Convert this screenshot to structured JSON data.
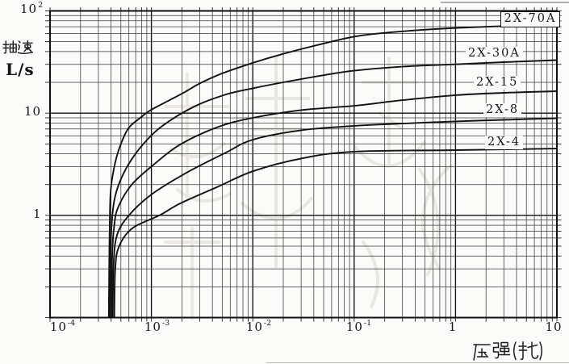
{
  "figure": {
    "y_axis": {
      "title_cn": "抽速",
      "unit": "L/s",
      "ticks": [
        {
          "base": "10",
          "exp": "2"
        },
        {
          "base": "10",
          "exp": ""
        },
        {
          "base": "1",
          "exp": ""
        }
      ]
    },
    "x_axis": {
      "title_cn": "压强(托)",
      "ticks": [
        {
          "base": "10",
          "exp": "-4"
        },
        {
          "base": "10",
          "exp": "-3"
        },
        {
          "base": "10",
          "exp": "-2"
        },
        {
          "base": "10",
          "exp": "-1"
        },
        {
          "base": "1",
          "exp": ""
        },
        {
          "base": "10",
          "exp": ""
        }
      ]
    },
    "colors": {
      "line": "#111111",
      "grid_minor": "#3a3a3a",
      "grid_major": "#121212",
      "background": "#fbfbfa"
    }
  },
  "chart_data": {
    "type": "line",
    "title": "",
    "xlabel": "压强(托)",
    "ylabel": "抽速 L/s",
    "x_scale": "log",
    "y_scale": "log",
    "xlim": [
      0.0001,
      10
    ],
    "ylim": [
      0.1,
      100
    ],
    "grid": "log-log full minor grid, ticks protruding on all four sides",
    "legend_position": "labels at right end of each curve",
    "x_tick_values": [
      0.0001,
      0.001,
      0.01,
      0.1,
      1,
      10
    ],
    "y_tick_values": [
      100,
      10,
      1
    ],
    "series": [
      {
        "name": "2X-70A",
        "points": [
          [
            0.00038,
            0.1
          ],
          [
            0.000385,
            0.45
          ],
          [
            0.00039,
            1.1
          ],
          [
            0.0004,
            1.9
          ],
          [
            0.00044,
            3.3
          ],
          [
            0.0005,
            5.0
          ],
          [
            0.0006,
            7.2
          ],
          [
            0.0008,
            9.2
          ],
          [
            0.001,
            10.8
          ],
          [
            0.002,
            15.5
          ],
          [
            0.003,
            19.5
          ],
          [
            0.005,
            24.5
          ],
          [
            0.01,
            31
          ],
          [
            0.02,
            38
          ],
          [
            0.05,
            48
          ],
          [
            0.1,
            56
          ],
          [
            0.2,
            61
          ],
          [
            0.5,
            65.5
          ],
          [
            1,
            68
          ],
          [
            3,
            71
          ],
          [
            10,
            73
          ]
        ]
      },
      {
        "name": "2X-30A",
        "points": [
          [
            0.00039,
            0.1
          ],
          [
            0.000395,
            0.4
          ],
          [
            0.000405,
            0.8
          ],
          [
            0.00043,
            1.4
          ],
          [
            0.000485,
            2.1
          ],
          [
            0.0006,
            3.2
          ],
          [
            0.00082,
            4.9
          ],
          [
            0.00126,
            7.4
          ],
          [
            0.0026,
            11.5
          ],
          [
            0.0054,
            15.2
          ],
          [
            0.01,
            17.5
          ],
          [
            0.02,
            20
          ],
          [
            0.05,
            23.5
          ],
          [
            0.1,
            26
          ],
          [
            0.3,
            28.5
          ],
          [
            1,
            30
          ],
          [
            3,
            31.5
          ],
          [
            10,
            33
          ]
        ]
      },
      {
        "name": "2X-15",
        "points": [
          [
            0.000405,
            0.1
          ],
          [
            0.00041,
            0.4
          ],
          [
            0.00043,
            0.8
          ],
          [
            0.00047,
            1.2
          ],
          [
            0.00064,
            2.0
          ],
          [
            0.00104,
            3.1
          ],
          [
            0.0019,
            4.9
          ],
          [
            0.0045,
            7.3
          ],
          [
            0.01,
            9.0
          ],
          [
            0.03,
            10.7
          ],
          [
            0.1,
            11.8
          ],
          [
            0.3,
            13.4
          ],
          [
            1,
            15.0
          ],
          [
            3,
            15.8
          ],
          [
            10,
            16.4
          ]
        ]
      },
      {
        "name": "2X-8",
        "points": [
          [
            0.000415,
            0.1
          ],
          [
            0.000425,
            0.35
          ],
          [
            0.00046,
            0.65
          ],
          [
            0.0006,
            1.0
          ],
          [
            0.001,
            1.6
          ],
          [
            0.0022,
            2.6
          ],
          [
            0.0054,
            4.1
          ],
          [
            0.01,
            5.5
          ],
          [
            0.03,
            6.8
          ],
          [
            0.1,
            7.5
          ],
          [
            0.3,
            7.9
          ],
          [
            1,
            8.3
          ],
          [
            3,
            8.6
          ],
          [
            10,
            8.9
          ]
        ]
      },
      {
        "name": "2X-4",
        "points": [
          [
            0.00043,
            0.1
          ],
          [
            0.00044,
            0.3
          ],
          [
            0.00048,
            0.5
          ],
          [
            0.00065,
            0.75
          ],
          [
            0.0012,
            1.0
          ],
          [
            0.0019,
            1.3
          ],
          [
            0.0045,
            1.9
          ],
          [
            0.01,
            2.7
          ],
          [
            0.03,
            3.6
          ],
          [
            0.1,
            4.2
          ],
          [
            1,
            4.35
          ],
          [
            10,
            4.5
          ]
        ]
      }
    ]
  }
}
